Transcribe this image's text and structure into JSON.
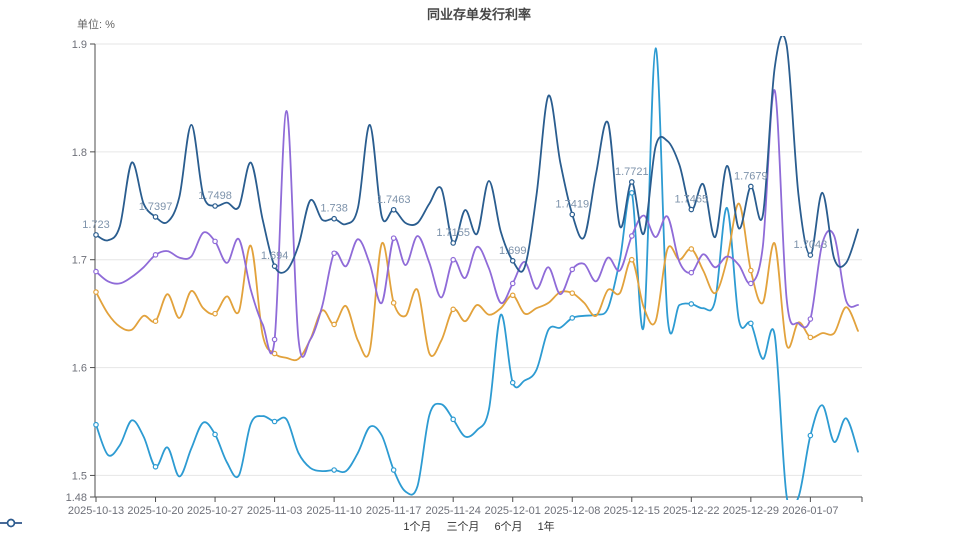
{
  "header": {
    "title": "同业存单发行利率",
    "unit_label": "单位: %"
  },
  "colors": {
    "title": "#464646",
    "axis_text": "#6e7079",
    "annotation": "#7e93ab",
    "grid_line": "#e6e6e6",
    "axis_line": "#4d4d4d",
    "background": "#ffffff"
  },
  "chart_data": {
    "type": "line",
    "title": "同业存单发行利率",
    "ylabel": "单位: %",
    "smooth": true,
    "grid": true,
    "legend_position": "bottom",
    "ylim": [
      1.48,
      1.9
    ],
    "y_ticks": [
      1.48,
      1.5,
      1.6,
      1.7,
      1.8,
      1.9
    ],
    "grid_values": [
      1.5,
      1.6,
      1.7,
      1.8,
      1.9
    ],
    "x": [
      "2025-10-13",
      "2025-10-14",
      "2025-10-15",
      "2025-10-16",
      "2025-10-17",
      "2025-10-20",
      "2025-10-21",
      "2025-10-22",
      "2025-10-23",
      "2025-10-24",
      "2025-10-27",
      "2025-10-28",
      "2025-10-29",
      "2025-10-30",
      "2025-10-31",
      "2025-11-03",
      "2025-11-04",
      "2025-11-05",
      "2025-11-06",
      "2025-11-07",
      "2025-11-10",
      "2025-11-11",
      "2025-11-12",
      "2025-11-13",
      "2025-11-14",
      "2025-11-17",
      "2025-11-18",
      "2025-11-19",
      "2025-11-20",
      "2025-11-21",
      "2025-11-24",
      "2025-11-25",
      "2025-11-26",
      "2025-11-27",
      "2025-11-28",
      "2025-12-01",
      "2025-12-02",
      "2025-12-03",
      "2025-12-04",
      "2025-12-05",
      "2025-12-08",
      "2025-12-09",
      "2025-12-10",
      "2025-12-11",
      "2025-12-12",
      "2025-12-15",
      "2025-12-16",
      "2025-12-17",
      "2025-12-18",
      "2025-12-19",
      "2025-12-22",
      "2025-12-23",
      "2025-12-24",
      "2025-12-25",
      "2025-12-26",
      "2025-12-29",
      "2025-12-30",
      "2025-12-31",
      "2026-01-05",
      "2026-01-06",
      "2026-01-07",
      "2026-01-08",
      "2026-01-09",
      "2026-01-12",
      "2026-01-13"
    ],
    "x_tick_indices": [
      0,
      5,
      10,
      15,
      20,
      25,
      30,
      35,
      40,
      45,
      50,
      55,
      60
    ],
    "x_tick_labels": [
      "2025-10-13",
      "2025-10-20",
      "2025-10-27",
      "2025-11-03",
      "2025-11-10",
      "2025-11-17",
      "2025-11-24",
      "2025-12-01",
      "2025-12-08",
      "2025-12-15",
      "2025-12-22",
      "2025-12-29",
      "2026-01-07"
    ],
    "marker_indices": [
      0,
      5,
      10,
      15,
      20,
      25,
      30,
      35,
      40,
      45,
      50,
      55,
      60
    ],
    "series": [
      {
        "name": "1个月",
        "key": "1m",
        "color": "#2d9bd2",
        "values": [
          1.547,
          1.519,
          1.528,
          1.551,
          1.536,
          1.508,
          1.526,
          1.499,
          1.525,
          1.549,
          1.538,
          1.512,
          1.5,
          1.548,
          1.555,
          1.55,
          1.552,
          1.521,
          1.507,
          1.504,
          1.505,
          1.504,
          1.521,
          1.545,
          1.537,
          1.505,
          1.485,
          1.49,
          1.556,
          1.566,
          1.552,
          1.536,
          1.542,
          1.561,
          1.649,
          1.586,
          1.588,
          1.598,
          1.635,
          1.637,
          1.646,
          1.648,
          1.649,
          1.655,
          1.7,
          1.762,
          1.638,
          1.896,
          1.647,
          1.658,
          1.659,
          1.655,
          1.662,
          1.748,
          1.644,
          1.641,
          1.608,
          1.63,
          1.481,
          1.48,
          1.537,
          1.565,
          1.531,
          1.553,
          1.522
        ]
      },
      {
        "name": "三个月",
        "key": "3m",
        "color": "#e2a23c",
        "values": [
          1.67,
          1.65,
          1.638,
          1.635,
          1.648,
          1.643,
          1.668,
          1.646,
          1.671,
          1.655,
          1.65,
          1.666,
          1.652,
          1.713,
          1.63,
          1.613,
          1.609,
          1.608,
          1.626,
          1.653,
          1.64,
          1.657,
          1.625,
          1.616,
          1.715,
          1.66,
          1.648,
          1.672,
          1.613,
          1.625,
          1.654,
          1.643,
          1.658,
          1.649,
          1.655,
          1.667,
          1.65,
          1.655,
          1.66,
          1.67,
          1.669,
          1.66,
          1.648,
          1.672,
          1.669,
          1.7,
          1.656,
          1.643,
          1.71,
          1.7,
          1.71,
          1.69,
          1.669,
          1.7,
          1.752,
          1.69,
          1.66,
          1.715,
          1.621,
          1.642,
          1.628,
          1.632,
          1.632,
          1.656,
          1.634
        ]
      },
      {
        "name": "6个月",
        "key": "6m",
        "color": "#8f6bd8",
        "values": [
          1.689,
          1.68,
          1.678,
          1.684,
          1.693,
          1.7045,
          1.708,
          1.702,
          1.703,
          1.725,
          1.717,
          1.697,
          1.719,
          1.672,
          1.64,
          1.626,
          1.838,
          1.627,
          1.626,
          1.657,
          1.706,
          1.694,
          1.719,
          1.696,
          1.66,
          1.72,
          1.695,
          1.722,
          1.697,
          1.665,
          1.7,
          1.683,
          1.712,
          1.692,
          1.66,
          1.678,
          1.698,
          1.673,
          1.693,
          1.668,
          1.691,
          1.696,
          1.68,
          1.702,
          1.69,
          1.722,
          1.741,
          1.721,
          1.74,
          1.698,
          1.688,
          1.705,
          1.693,
          1.703,
          1.695,
          1.678,
          1.712,
          1.857,
          1.664,
          1.641,
          1.645,
          1.715,
          1.722,
          1.662,
          1.658
        ]
      },
      {
        "name": "1年",
        "key": "1y",
        "color": "#2a5d8f",
        "values": [
          1.723,
          1.718,
          1.731,
          1.79,
          1.752,
          1.7397,
          1.735,
          1.758,
          1.825,
          1.76,
          1.7498,
          1.753,
          1.749,
          1.79,
          1.737,
          1.694,
          1.69,
          1.713,
          1.755,
          1.737,
          1.738,
          1.733,
          1.748,
          1.825,
          1.74,
          1.7463,
          1.734,
          1.734,
          1.752,
          1.766,
          1.7155,
          1.746,
          1.724,
          1.773,
          1.726,
          1.699,
          1.693,
          1.76,
          1.852,
          1.79,
          1.7419,
          1.721,
          1.78,
          1.827,
          1.731,
          1.7721,
          1.724,
          1.805,
          1.81,
          1.788,
          1.7465,
          1.77,
          1.721,
          1.787,
          1.729,
          1.7679,
          1.741,
          1.878,
          1.899,
          1.76,
          1.7043,
          1.762,
          1.701,
          1.697,
          1.728
        ],
        "point_labels": {
          "indices": [
            0,
            5,
            10,
            15,
            20,
            25,
            30,
            35,
            40,
            45,
            50,
            55,
            60
          ],
          "labels": [
            "1.723",
            "1.7397",
            "1.7498",
            "1.694",
            "1.738",
            "1.7463",
            "1.7155",
            "1.699",
            "1.7419",
            "1.7721",
            "1.7465",
            "1.7679",
            "1.7043"
          ]
        }
      }
    ]
  }
}
